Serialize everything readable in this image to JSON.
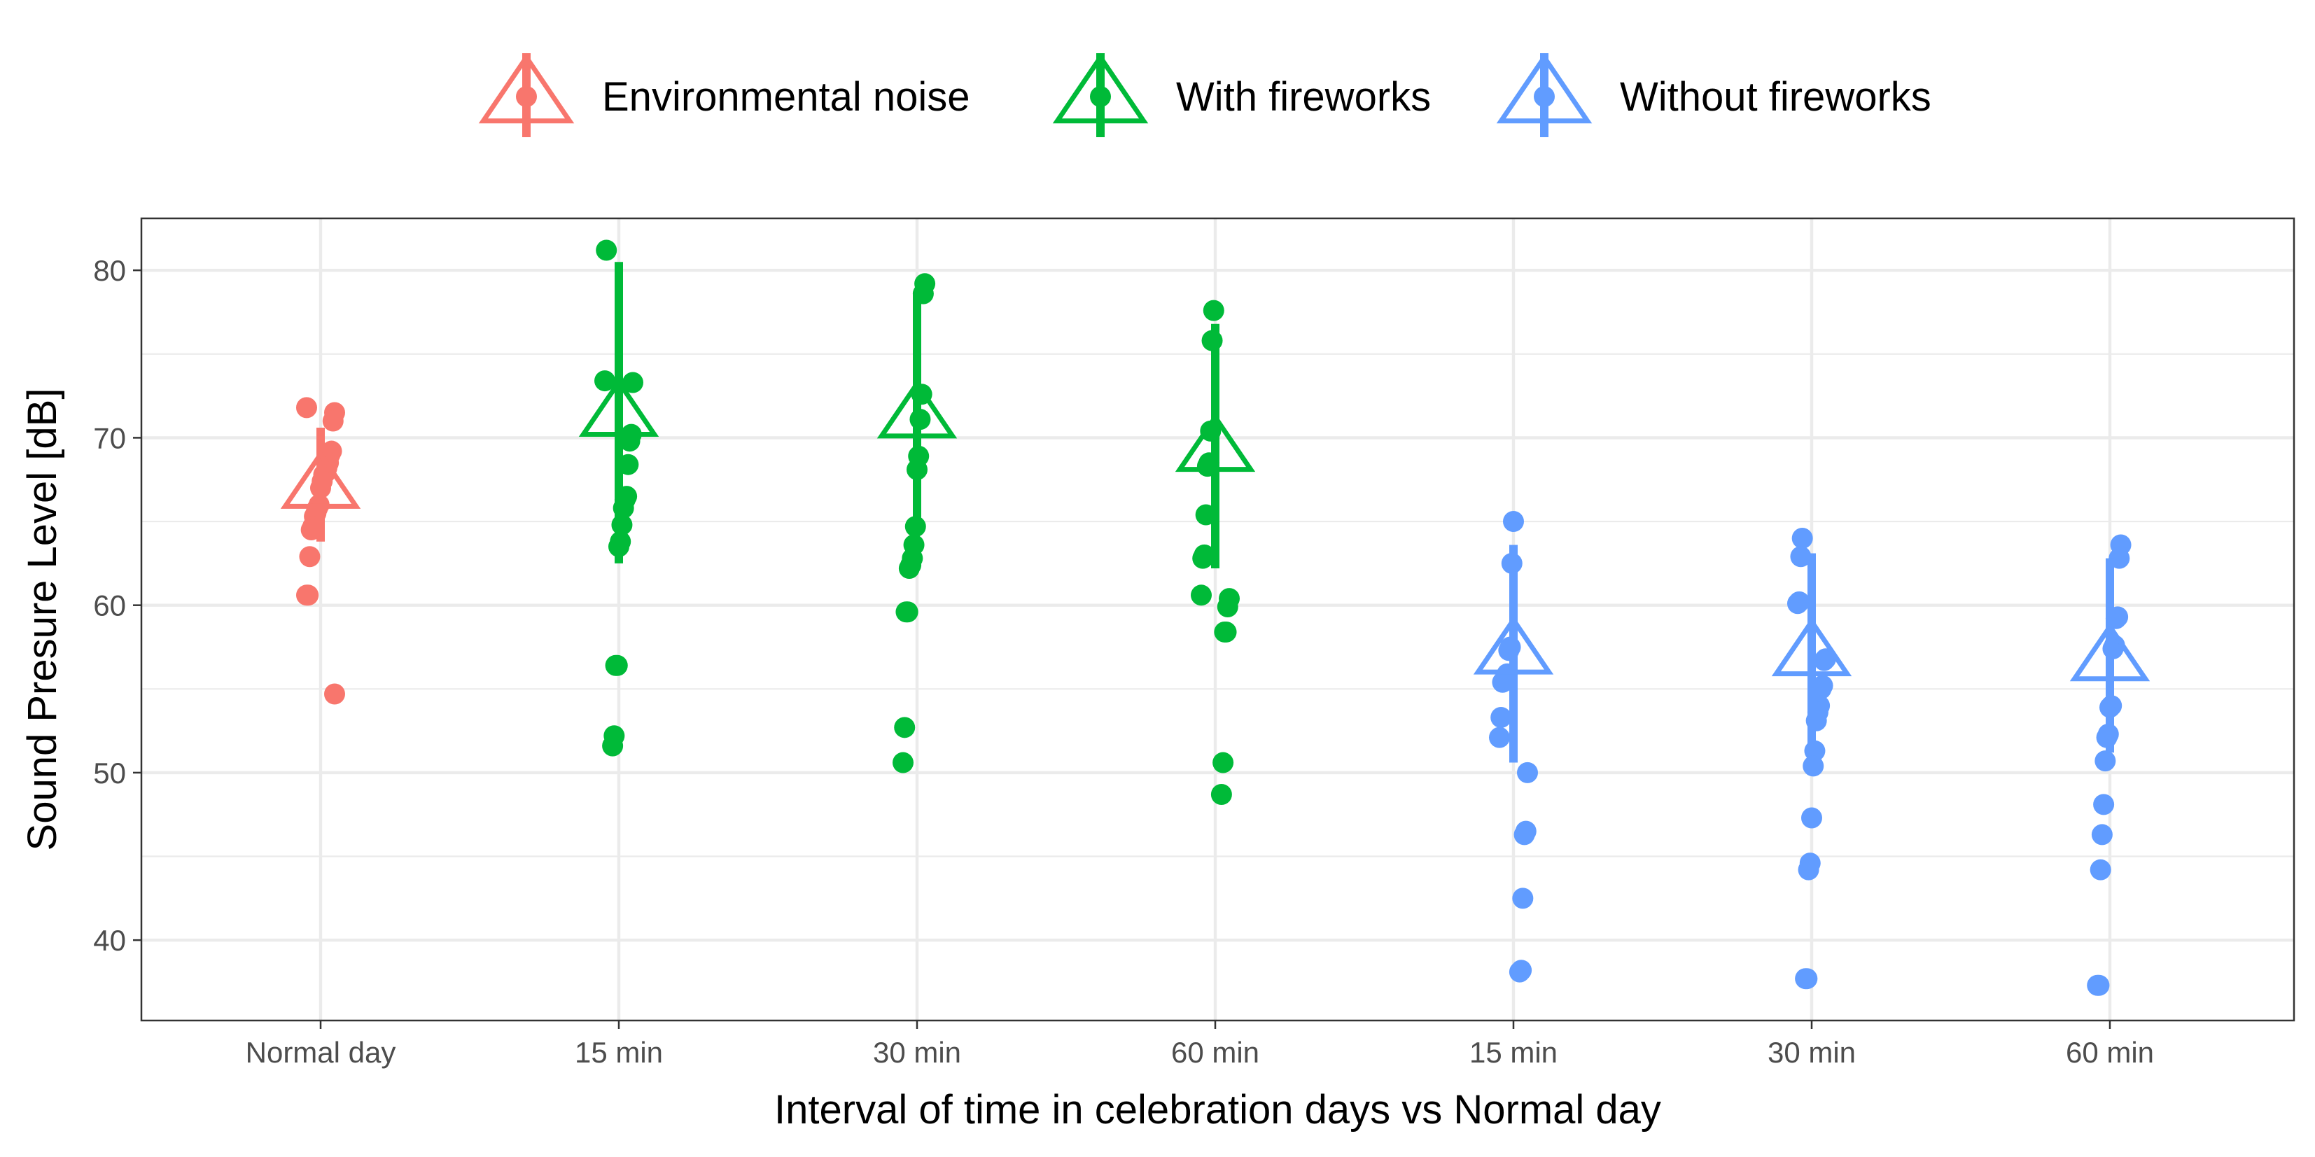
{
  "chart_data": {
    "type": "scatter",
    "title": "",
    "xlabel": "Interval of time in celebration days vs Normal day",
    "ylabel": "Sound Presure Level [dB]",
    "categories": [
      "Normal day",
      "15 min",
      "30 min",
      "60 min",
      "15 min",
      "30 min",
      "60 min"
    ],
    "ylim": [
      35.2,
      83.1
    ],
    "yticks": [
      40,
      50,
      60,
      70,
      80
    ],
    "grid": true,
    "legend_position": "top",
    "series": [
      {
        "name": "Environmental noise",
        "color": "#F8766D",
        "groups": [
          {
            "category_index": 0,
            "mean": 67.1,
            "error_low": 63.8,
            "error_high": 70.6,
            "points": [
              71.8,
              71.5,
              71.0,
              69.2,
              69.0,
              68.5,
              68.2,
              67.9,
              67.8,
              67.4,
              67.0,
              66.0,
              65.8,
              65.5,
              65.3,
              64.7,
              64.5,
              62.9,
              60.6,
              60.6,
              54.7
            ]
          }
        ]
      },
      {
        "name": "With fireworks",
        "color": "#00BA38",
        "groups": [
          {
            "category_index": 1,
            "mean": 71.4,
            "error_low": 62.5,
            "error_high": 80.5,
            "points": [
              81.2,
              73.4,
              73.3,
              70.2,
              69.8,
              68.4,
              66.5,
              66.3,
              65.8,
              64.8,
              63.8,
              63.5,
              56.4,
              56.4,
              52.2,
              51.6
            ]
          },
          {
            "category_index": 2,
            "mean": 71.3,
            "error_low": 64.4,
            "error_high": 78.7,
            "points": [
              79.2,
              78.6,
              72.6,
              71.1,
              68.9,
              68.1,
              64.7,
              63.6,
              62.8,
              62.4,
              62.2,
              59.6,
              59.6,
              52.7,
              50.6
            ]
          },
          {
            "category_index": 3,
            "mean": 69.3,
            "error_low": 62.2,
            "error_high": 76.8,
            "points": [
              77.6,
              75.8,
              70.4,
              68.5,
              68.3,
              65.4,
              63.0,
              62.8,
              60.6,
              60.4,
              59.9,
              58.4,
              58.4,
              50.6,
              48.7
            ]
          }
        ]
      },
      {
        "name": "Without fireworks",
        "color": "#619CFF",
        "groups": [
          {
            "category_index": 4,
            "mean": 57.2,
            "error_low": 50.6,
            "error_high": 63.6,
            "points": [
              65.0,
              62.5,
              57.5,
              57.3,
              55.9,
              55.6,
              55.5,
              55.4,
              53.3,
              52.1,
              50.0,
              46.5,
              46.3,
              42.5,
              38.2,
              38.1
            ]
          },
          {
            "category_index": 5,
            "mean": 57.1,
            "error_low": 51.5,
            "error_high": 63.1,
            "points": [
              64.0,
              62.9,
              60.2,
              60.1,
              56.8,
              56.7,
              55.2,
              55.0,
              54.0,
              53.6,
              53.1,
              51.3,
              50.4,
              47.3,
              44.6,
              44.2,
              37.7,
              37.7
            ]
          },
          {
            "category_index": 6,
            "mean": 56.8,
            "error_low": 51.2,
            "error_high": 62.8,
            "points": [
              63.6,
              62.8,
              59.3,
              59.2,
              57.6,
              57.4,
              54.0,
              53.9,
              52.3,
              52.1,
              50.7,
              48.1,
              46.3,
              44.2,
              37.3,
              37.3
            ]
          }
        ]
      }
    ]
  }
}
